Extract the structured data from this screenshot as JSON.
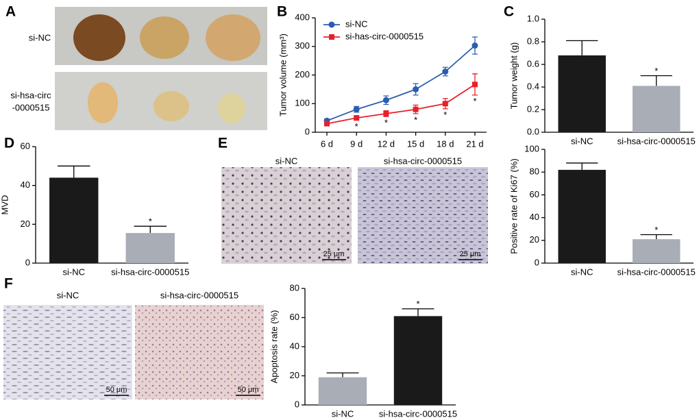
{
  "panel_letters": [
    "A",
    "B",
    "C",
    "D",
    "E",
    "F"
  ],
  "panel_a": {
    "rows": [
      [
        "si-NC"
      ],
      [
        "si-hsa-circ",
        "-0000515"
      ]
    ]
  },
  "panel_e": {
    "images": [
      {
        "caption": "si-NC",
        "scale": "25 μm"
      },
      {
        "caption": "si-hsa-circ-0000515",
        "scale": "25 μm"
      }
    ]
  },
  "panel_f": {
    "images": [
      {
        "caption": "si-NC",
        "scale": "50 μm"
      },
      {
        "caption": "si-hsa-circ-0000515",
        "scale": "50 μm"
      }
    ]
  },
  "chart_data": [
    {
      "type": "line",
      "ylabel": "Tumor volume (mm³)",
      "categories": [
        "6 d",
        "9 d",
        "12 d",
        "15 d",
        "18 d",
        "21 d"
      ],
      "ylim": [
        0,
        400
      ],
      "yticks": [
        0,
        100,
        200,
        300,
        400
      ],
      "legend": "upper left",
      "series": [
        {
          "name": "si-NC",
          "color": "#2a5db0",
          "marker": "circle",
          "values": [
            40,
            80,
            112,
            150,
            212,
            303
          ],
          "errors": [
            6,
            10,
            15,
            20,
            15,
            30
          ]
        },
        {
          "name": "si-has-circ-0000515",
          "color": "#e8202a",
          "marker": "square",
          "values": [
            30,
            50,
            65,
            80,
            100,
            167
          ],
          "errors": [
            5,
            8,
            10,
            15,
            18,
            37
          ],
          "significance": [
            null,
            "*",
            "*",
            "*",
            "*",
            "*"
          ]
        }
      ]
    },
    {
      "type": "bar",
      "ylabel": "Tumor weight (g)",
      "categories": [
        "si-NC",
        "si-hsa-circ-0000515"
      ],
      "values": [
        0.68,
        0.41
      ],
      "errors": [
        0.13,
        0.09
      ],
      "colors": [
        "#1a1a1a",
        "#a8adb6"
      ],
      "significance": [
        null,
        "*"
      ],
      "ylim": [
        0,
        1
      ],
      "yticks": [
        {
          "value": 0,
          "label": "0.0"
        },
        0.2,
        0.4,
        0.6,
        0.8,
        {
          "value": 1,
          "label": "1.0"
        }
      ]
    },
    {
      "type": "bar",
      "ylabel": "MVD",
      "categories": [
        "si-NC",
        "si-hsa-circ-0000515"
      ],
      "values": [
        44,
        15.5
      ],
      "errors": [
        6,
        3.5
      ],
      "colors": [
        "#1a1a1a",
        "#a8adb6"
      ],
      "significance": [
        null,
        "*"
      ],
      "ylim": [
        0,
        60
      ],
      "yticks": [
        0,
        20,
        40,
        60
      ]
    },
    {
      "type": "bar",
      "ylabel": "Positive rate of Ki67 (%)",
      "categories": [
        "si-NC",
        "si-hsa-circ-0000515"
      ],
      "values": [
        82,
        21
      ],
      "errors": [
        6,
        4
      ],
      "colors": [
        "#1a1a1a",
        "#a8adb6"
      ],
      "significance": [
        null,
        "*"
      ],
      "ylim": [
        0,
        100
      ],
      "yticks": [
        0,
        20,
        40,
        60,
        80,
        100
      ]
    },
    {
      "type": "bar",
      "ylabel": "Apoptosis rate (%)",
      "categories": [
        "si-NC",
        "si-hsa-circ-0000515"
      ],
      "values": [
        19,
        61
      ],
      "errors": [
        3,
        5
      ],
      "colors": [
        "#a8adb6",
        "#1a1a1a"
      ],
      "significance": [
        null,
        "*"
      ],
      "ylim": [
        0,
        80
      ],
      "yticks": [
        0,
        20,
        40,
        60,
        80
      ]
    }
  ]
}
